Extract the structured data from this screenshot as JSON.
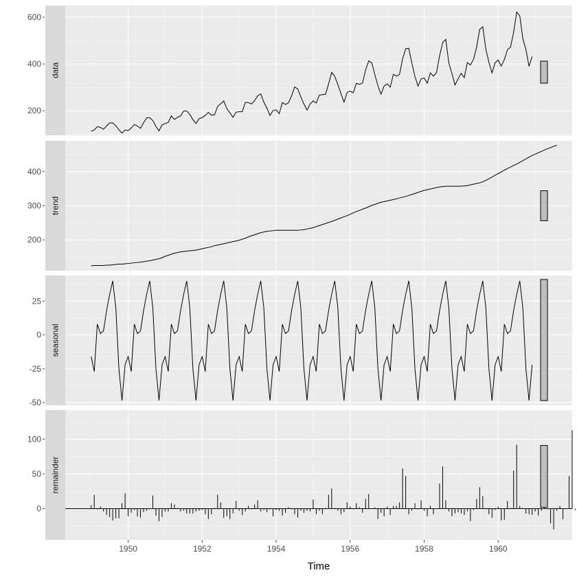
{
  "chart_data": {
    "type": "line",
    "xlabel": "Time",
    "x_ticks": [
      1950,
      1952,
      1954,
      1956,
      1958,
      1960
    ],
    "x_range": [
      1948.3,
      1962.0
    ],
    "start_year": 1949,
    "frequency": 12,
    "colors": {
      "panel_bg": "#ebebeb",
      "strip_bg": "#d9d9d9",
      "grid_major": "#ffffff",
      "line": "#000000",
      "range_bar_fill": "#bfbfbf"
    },
    "panels": [
      {
        "name": "data",
        "type": "line",
        "ylim": [
          95,
          650
        ],
        "y_ticks": [
          200,
          400,
          600
        ],
        "range_bar": [
          318,
          412
        ],
        "values": [
          112,
          118,
          132,
          129,
          121,
          135,
          148,
          148,
          136,
          119,
          104,
          118,
          115,
          126,
          141,
          135,
          125,
          149,
          170,
          170,
          158,
          133,
          114,
          140,
          145,
          150,
          178,
          163,
          172,
          178,
          199,
          199,
          184,
          162,
          146,
          166,
          171,
          180,
          193,
          181,
          183,
          218,
          230,
          242,
          209,
          191,
          172,
          194,
          196,
          196,
          236,
          235,
          229,
          243,
          264,
          272,
          237,
          211,
          180,
          201,
          204,
          188,
          235,
          227,
          234,
          264,
          302,
          293,
          259,
          229,
          203,
          229,
          242,
          233,
          267,
          269,
          270,
          315,
          364,
          347,
          312,
          274,
          237,
          278,
          284,
          277,
          317,
          313,
          318,
          374,
          413,
          405,
          355,
          306,
          271,
          306,
          315,
          301,
          356,
          348,
          355,
          422,
          465,
          467,
          404,
          347,
          305,
          336,
          340,
          318,
          362,
          348,
          363,
          435,
          491,
          505,
          404,
          359,
          310,
          337,
          360,
          342,
          406,
          396,
          420,
          472,
          548,
          559,
          463,
          407,
          362,
          405,
          417,
          391,
          419,
          461,
          472,
          535,
          622,
          606,
          508,
          461,
          390,
          432
        ]
      },
      {
        "name": "trend",
        "type": "line",
        "ylim": [
          110,
          490
        ],
        "y_ticks": [
          200,
          300,
          400
        ],
        "range_bar": [
          256,
          344
        ],
        "values": [
          124,
          125,
          125,
          125,
          125,
          126,
          126,
          127,
          128,
          129,
          129,
          130,
          131,
          132,
          133,
          134,
          135,
          136,
          138,
          139,
          141,
          143,
          145,
          148,
          152,
          155,
          158,
          161,
          163,
          165,
          166,
          167,
          168,
          169,
          170,
          172,
          174,
          176,
          178,
          180,
          183,
          185,
          187,
          189,
          191,
          193,
          195,
          197,
          199,
          202,
          205,
          209,
          212,
          215,
          218,
          221,
          223,
          225,
          226,
          227,
          228,
          228,
          228,
          228,
          228,
          228,
          228,
          228,
          229,
          230,
          232,
          234,
          236,
          239,
          242,
          245,
          248,
          251,
          254,
          257,
          261,
          264,
          268,
          271,
          275,
          279,
          283,
          286,
          290,
          293,
          297,
          301,
          304,
          307,
          310,
          312,
          314,
          316,
          318,
          320,
          323,
          325,
          327,
          330,
          333,
          336,
          339,
          342,
          345,
          347,
          349,
          351,
          353,
          355,
          356,
          357,
          357,
          357,
          357,
          357,
          357,
          358,
          359,
          361,
          363,
          365,
          367,
          370,
          374,
          379,
          384,
          389,
          394,
          399,
          404,
          409,
          413,
          418,
          422,
          427,
          432,
          437,
          442,
          447,
          451,
          455,
          459,
          463,
          467,
          470,
          474,
          477
        ]
      },
      {
        "name": "seasonal",
        "type": "line",
        "ylim": [
          -52,
          44
        ],
        "y_ticks": [
          -50,
          -25,
          0,
          25
        ],
        "range_bar": [
          -48.5,
          41.0
        ],
        "cycle": [
          -16,
          -27,
          8,
          1,
          3,
          18,
          30,
          40,
          20,
          -25,
          -48.5,
          -22
        ],
        "values": []
      },
      {
        "name": "remainder",
        "type": "bar",
        "ylim": [
          -45,
          142
        ],
        "y_ticks": [
          0,
          50,
          100
        ],
        "range_bar": [
          2,
          91
        ],
        "values": [
          5,
          20,
          -1,
          3,
          -4,
          -9,
          -12,
          -17,
          -14,
          -14,
          8,
          22,
          -11,
          -6,
          -2,
          -11,
          -13,
          -5,
          -3,
          -1,
          19,
          -10,
          -18,
          -12,
          -4,
          -4,
          8,
          6,
          1,
          -4,
          -3,
          -7,
          -7,
          -7,
          -4,
          -3,
          -2,
          -8,
          -15,
          -8,
          1,
          20,
          9,
          -13,
          -11,
          -15,
          -7,
          11,
          -3,
          -9,
          -4,
          4,
          -1,
          6,
          12,
          -4,
          -2,
          -5,
          -1,
          -11,
          -2,
          -3,
          -10,
          -6,
          2,
          -1,
          -8,
          -13,
          -3,
          -6,
          -3,
          -4,
          13,
          -8,
          -3,
          -8,
          1,
          20,
          29,
          1,
          -3,
          -8,
          -5,
          9,
          3,
          -1,
          8,
          2,
          -6,
          14,
          21,
          0,
          2,
          -15,
          -6,
          -11,
          3,
          -9,
          4,
          4,
          9,
          58,
          47,
          -8,
          -3,
          8,
          -1,
          12,
          -3,
          -11,
          4,
          -8,
          0,
          36,
          61,
          12,
          -4,
          -11,
          -7,
          -5,
          -7,
          -9,
          -4,
          -18,
          -2,
          14,
          31,
          18,
          -1,
          -8,
          -13,
          -2,
          3,
          -17,
          -16,
          11,
          1,
          55,
          92,
          4,
          1,
          -7,
          -8,
          -9,
          -4,
          -10,
          -3,
          5,
          -1,
          -21,
          -30,
          -3,
          4,
          -15,
          0,
          47,
          113,
          -2,
          -33,
          -1
        ]
      }
    ]
  }
}
